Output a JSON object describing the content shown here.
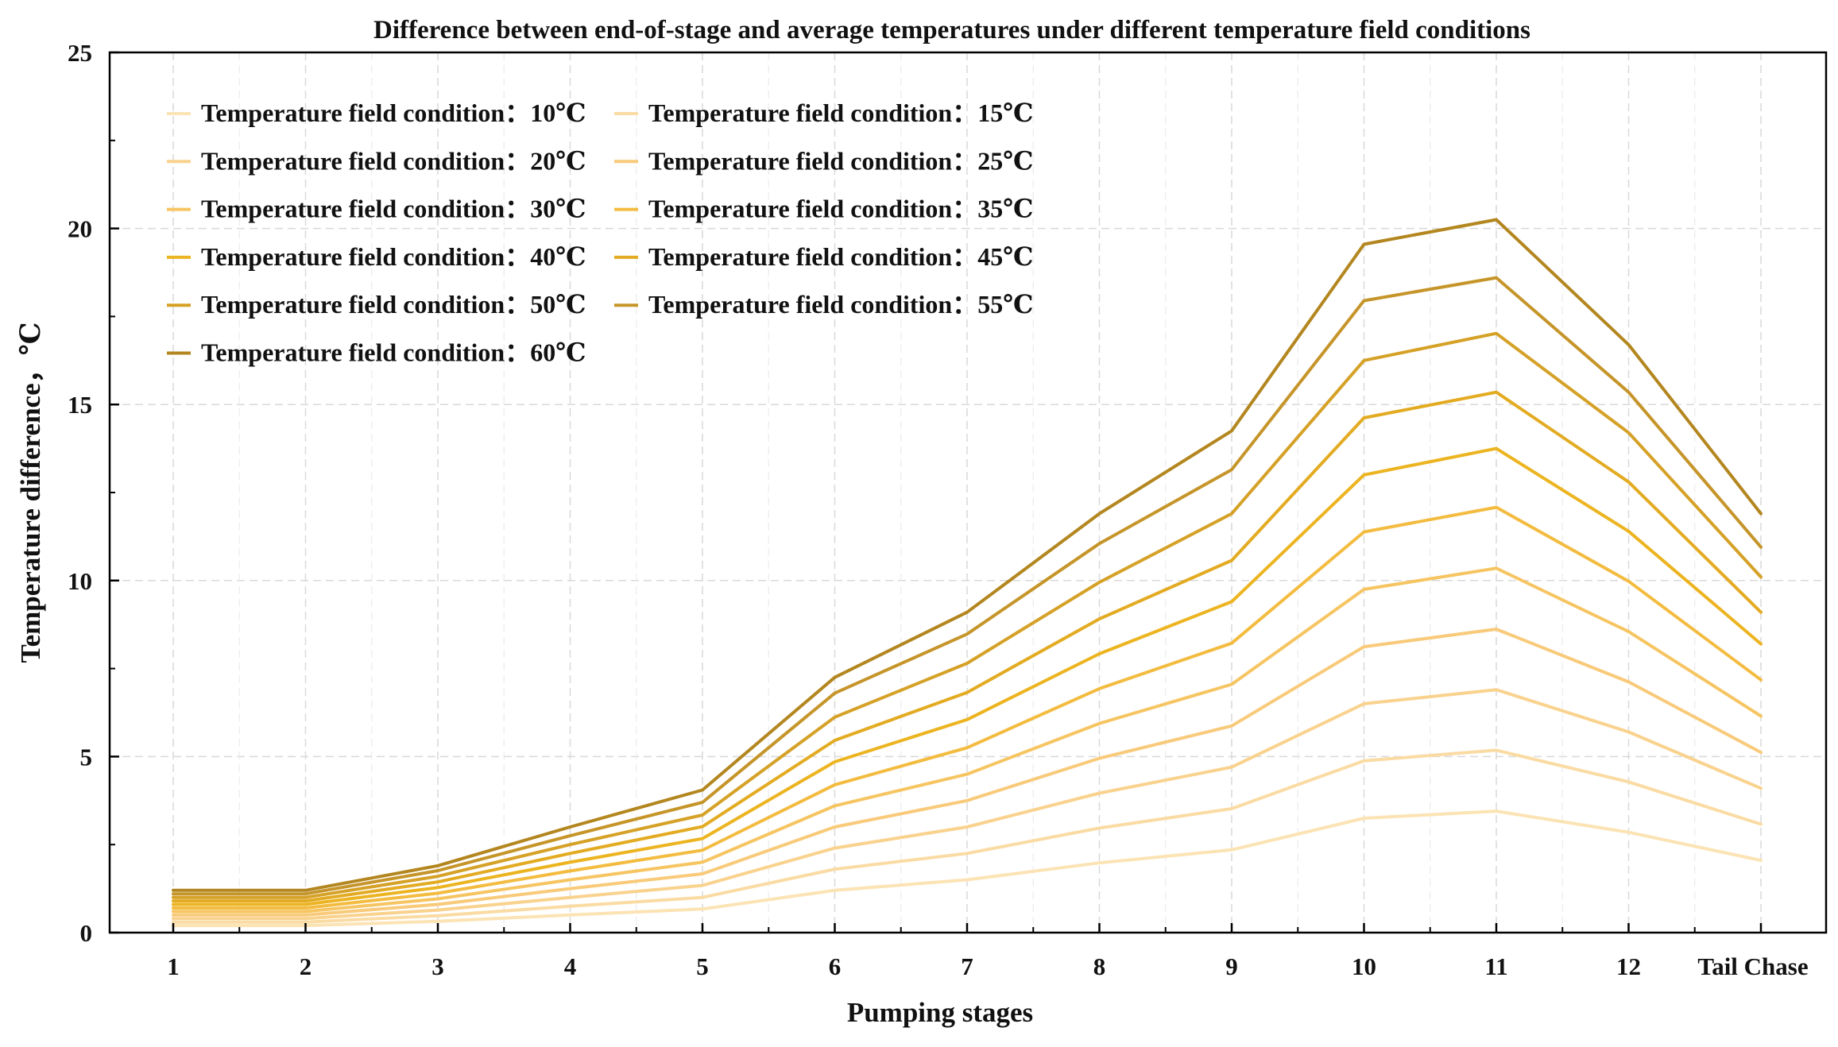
{
  "chart_data": {
    "type": "line",
    "title": "Difference between end-of-stage and average temperatures under different temperature field conditions",
    "xlabel": "Pumping stages",
    "ylabel": "Temperature difference，℃",
    "categories": [
      "1",
      "2",
      "3",
      "4",
      "5",
      "6",
      "7",
      "8",
      "9",
      "10",
      "11",
      "12",
      "Tail Chase"
    ],
    "ylim": [
      0,
      25
    ],
    "yticks": [
      "0",
      "5",
      "10",
      "15",
      "20",
      "25"
    ],
    "grid": true,
    "legend_position": "top-left",
    "series": [
      {
        "name": "Temperature field condition：10℃",
        "color": "#FBE3B4",
        "values": [
          0.2,
          0.2,
          0.32,
          0.5,
          0.67,
          1.2,
          1.5,
          1.98,
          2.35,
          3.25,
          3.45,
          2.85,
          2.05
        ]
      },
      {
        "name": "Temperature field condition：15℃",
        "color": "#FADBA3",
        "values": [
          0.3,
          0.3,
          0.48,
          0.75,
          1.0,
          1.8,
          2.25,
          2.97,
          3.52,
          4.88,
          5.18,
          4.28,
          3.08
        ]
      },
      {
        "name": "Temperature field condition：20℃",
        "color": "#F9D28E",
        "values": [
          0.4,
          0.4,
          0.64,
          1.0,
          1.34,
          2.4,
          3.0,
          3.96,
          4.7,
          6.5,
          6.9,
          5.7,
          4.1
        ]
      },
      {
        "name": "Temperature field condition：25℃",
        "color": "#F8CA7A",
        "values": [
          0.5,
          0.5,
          0.8,
          1.25,
          1.67,
          3.0,
          3.75,
          4.95,
          5.87,
          8.12,
          8.62,
          7.12,
          5.12
        ]
      },
      {
        "name": "Temperature field condition：30℃",
        "color": "#F6C562",
        "values": [
          0.6,
          0.6,
          0.96,
          1.5,
          2.0,
          3.6,
          4.5,
          5.94,
          7.05,
          9.75,
          10.35,
          8.55,
          6.15
        ]
      },
      {
        "name": "Temperature field condition：35℃",
        "color": "#F3BC40",
        "values": [
          0.7,
          0.7,
          1.12,
          1.75,
          2.34,
          4.2,
          5.25,
          6.93,
          8.22,
          11.38,
          12.08,
          9.98,
          7.18
        ]
      },
      {
        "name": "Temperature field condition：40℃",
        "color": "#ECB420",
        "values": [
          0.8,
          0.8,
          1.28,
          2.0,
          2.67,
          4.85,
          6.05,
          7.92,
          9.4,
          13.0,
          13.75,
          11.4,
          8.2
        ]
      },
      {
        "name": "Temperature field condition：45℃",
        "color": "#E3AB22",
        "values": [
          0.9,
          0.9,
          1.44,
          2.25,
          3.01,
          5.46,
          6.82,
          8.91,
          10.57,
          14.62,
          15.35,
          12.8,
          9.1
        ]
      },
      {
        "name": "Temperature field condition：50℃",
        "color": "#D5A127",
        "values": [
          1.0,
          1.0,
          1.6,
          2.5,
          3.34,
          6.12,
          7.65,
          9.95,
          11.9,
          16.25,
          17.02,
          14.2,
          10.1
        ]
      },
      {
        "name": "Temperature field condition：55℃",
        "color": "#C6952A",
        "values": [
          1.1,
          1.1,
          1.76,
          2.75,
          3.7,
          6.8,
          8.48,
          11.05,
          13.15,
          17.95,
          18.6,
          15.35,
          10.95
        ]
      },
      {
        "name": "Temperature field condition：60℃",
        "color": "#B3861F",
        "values": [
          1.2,
          1.2,
          1.9,
          3.0,
          4.05,
          7.25,
          9.1,
          11.9,
          14.25,
          19.55,
          20.25,
          16.7,
          11.9
        ]
      }
    ]
  }
}
